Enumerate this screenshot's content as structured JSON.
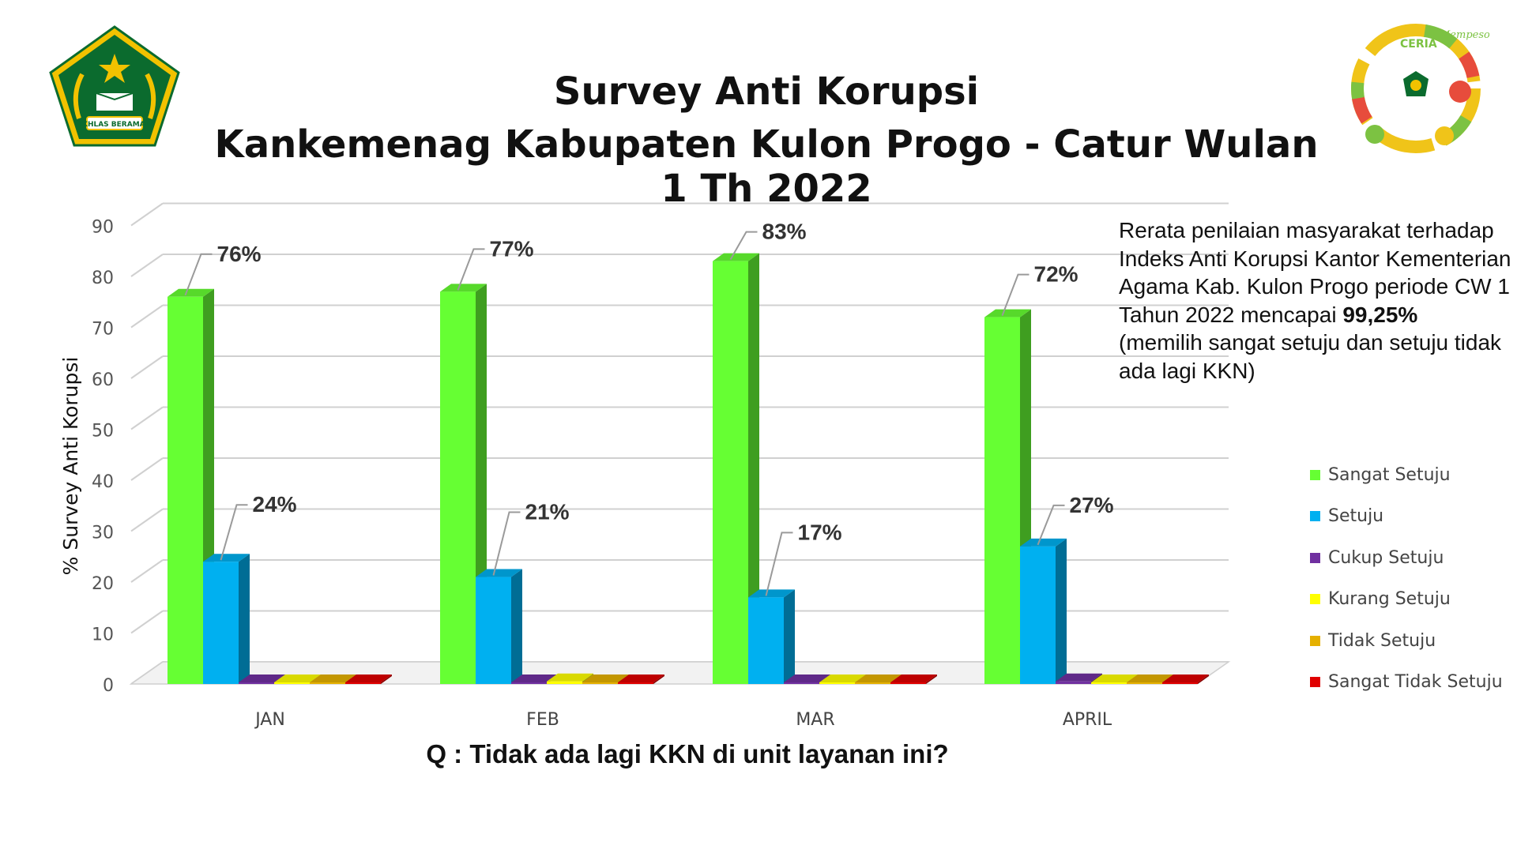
{
  "header": {
    "title_line1": "Survey Anti Korupsi",
    "title_line2": "Kankemenag Kabupaten Kulon Progo - Catur Wulan 1 Th 2022"
  },
  "logo_left": {
    "icon": "kemenag-emblem-icon",
    "banner_text": "IKHLAS BERAMAL"
  },
  "logo_right": {
    "icon": "ceria-emblem-icon",
    "word": "CERIA",
    "script": "Mempesona"
  },
  "note": {
    "line_main": "Rerata penilaian masyarakat terhadap Indeks Anti Korupsi Kantor Kementerian Agama Kab. Kulon Progo periode CW 1 Tahun 2022 mencapai",
    "highlight": "99,25%",
    "line_sub": "(memilih sangat setuju dan setuju tidak ada lagi KKN)"
  },
  "question": "Q :  Tidak ada lagi KKN di unit layanan ini?",
  "chart_data": {
    "type": "bar",
    "style": "3d-clustered",
    "categories": [
      "JAN",
      "FEB",
      "MAR",
      "APRIL"
    ],
    "ylabel": "% Survey Anti Korupsi",
    "xlabel": "",
    "ylim": [
      0,
      90
    ],
    "yticks": [
      0,
      10,
      20,
      30,
      40,
      50,
      60,
      70,
      80,
      90
    ],
    "grid": true,
    "legend_position": "right",
    "series": [
      {
        "name": "Sangat Setuju",
        "color": "#66ff33",
        "values": [
          76,
          77,
          83,
          72
        ],
        "labels": [
          "76%",
          "77%",
          "83%",
          "72%"
        ]
      },
      {
        "name": "Setuju",
        "color": "#00b0f0",
        "values": [
          24,
          21,
          17,
          27
        ],
        "labels": [
          "24%",
          "21%",
          "17%",
          "27%"
        ]
      },
      {
        "name": "Cukup Setuju",
        "color": "#7030a0",
        "values": [
          0,
          0,
          0,
          0.5
        ]
      },
      {
        "name": "Kurang Setuju",
        "color": "#ffff00",
        "values": [
          0,
          0.5,
          0,
          0
        ]
      },
      {
        "name": "Tidak Setuju",
        "color": "#e5b000",
        "values": [
          0,
          0,
          0,
          0
        ]
      },
      {
        "name": "Sangat Tidak Setuju",
        "color": "#e00000",
        "values": [
          0,
          0,
          0,
          0
        ]
      }
    ]
  }
}
